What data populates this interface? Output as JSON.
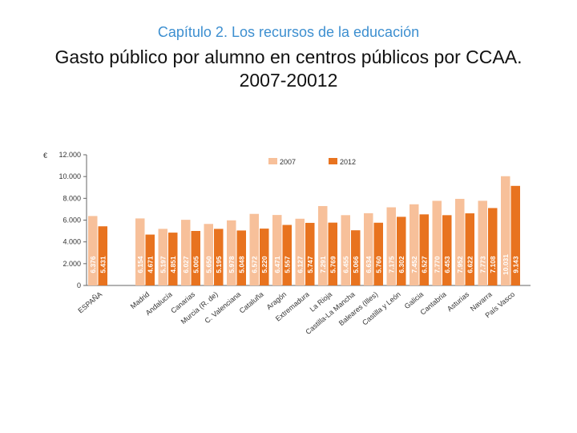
{
  "header": {
    "subtitle": "Capítulo 2. Los recursos de la educación",
    "title": "Gasto público por alumno en centros públicos por CCAA. 2007-20012"
  },
  "colors": {
    "s2007": "#f7c09a",
    "s2012": "#e8731f",
    "axis": "#666666",
    "label": "#333333"
  },
  "chart_data": {
    "type": "bar",
    "title": "",
    "currency_label": "€",
    "ylim": [
      0,
      12000
    ],
    "yticks": [
      0,
      2000,
      4000,
      6000,
      8000,
      10000,
      12000
    ],
    "ytick_labels": [
      "0",
      "2.000",
      "4.000",
      "6.000",
      "8.000",
      "10.000",
      "12.000"
    ],
    "legend_position": "top",
    "categories": [
      "ESPAÑA",
      "Madrid",
      "Andalucía",
      "Canarias",
      "Murcia (R. de)",
      "C. Valenciana",
      "Cataluña",
      "Aragón",
      "Extremadura",
      "La Rioja",
      "Castilla-La Mancha",
      "Baleares (Illes)",
      "Castilla y León",
      "Galicia",
      "Cantabria",
      "Asturias",
      "Navarra",
      "País Vasco"
    ],
    "series": [
      {
        "name": "2007",
        "values": [
          6376,
          6154,
          5197,
          6027,
          5650,
          5978,
          6572,
          6471,
          6127,
          7291,
          6455,
          6634,
          7175,
          7452,
          7770,
          7952,
          7773,
          10031
        ],
        "labels": [
          "6.376",
          "6.154",
          "5.197",
          "6.027",
          "5.650",
          "5.978",
          "6.572",
          "6.471",
          "6.127",
          "7.291",
          "6.455",
          "6.634",
          "7.175",
          "7.452",
          "7.770",
          "7.952",
          "7.773",
          "10.031"
        ]
      },
      {
        "name": "2012",
        "values": [
          5431,
          4671,
          4851,
          5005,
          5195,
          5048,
          5220,
          5557,
          5747,
          5769,
          5066,
          5760,
          6302,
          6527,
          6453,
          6622,
          7108,
          9143
        ],
        "labels": [
          "5.431",
          "4.671",
          "4.851",
          "5.005",
          "5.195",
          "5.048",
          "5.220",
          "5.557",
          "5.747",
          "5.769",
          "5.066",
          "5.760",
          "6.302",
          "6.527",
          "6.453",
          "6.622",
          "7.108",
          "9.143"
        ]
      }
    ]
  }
}
